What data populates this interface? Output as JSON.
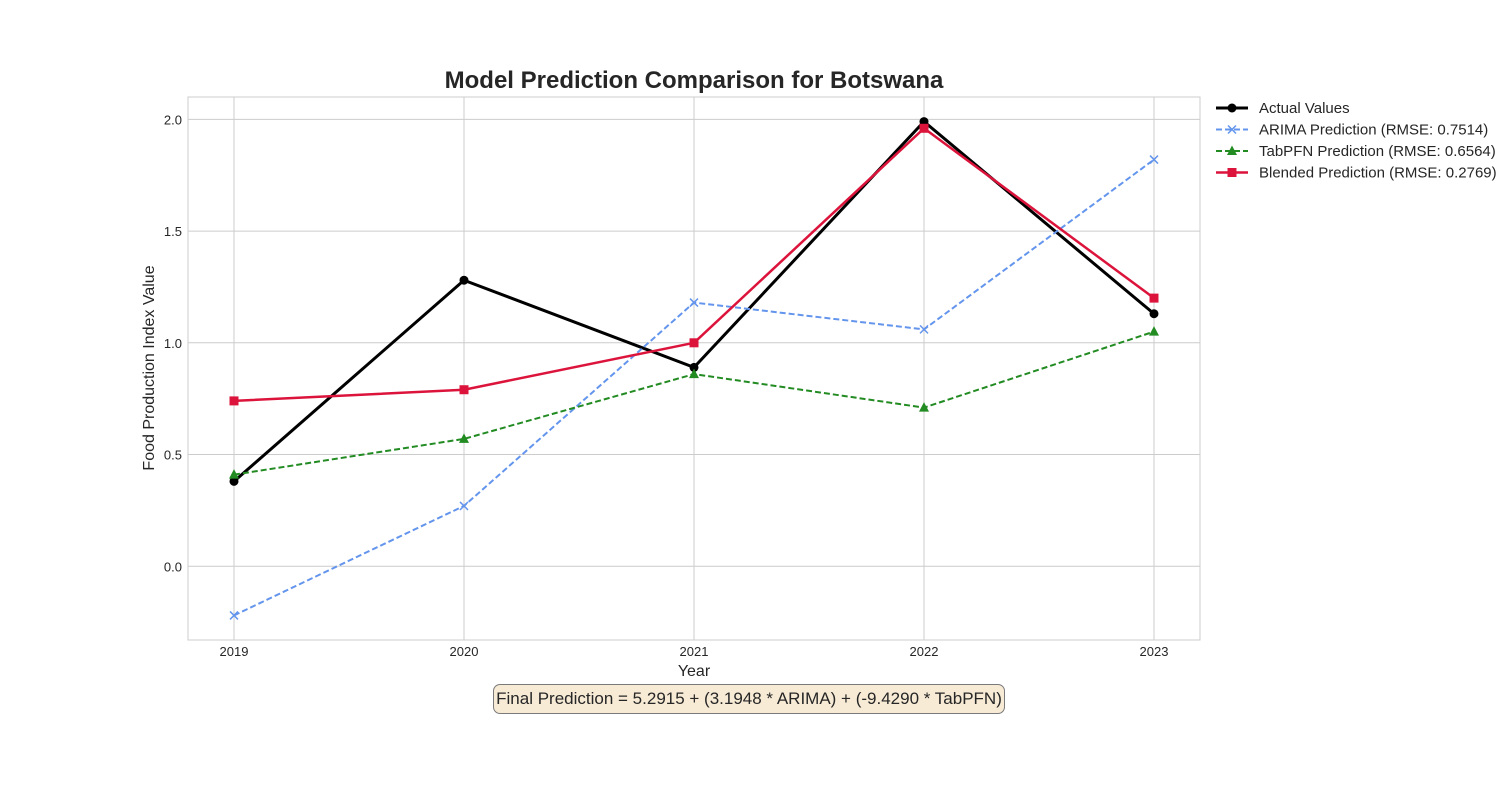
{
  "chart_data": {
    "type": "line",
    "title": "Model Prediction Comparison for Botswana",
    "xlabel": "Year",
    "ylabel": "Food Production Index Value",
    "x": [
      2019,
      2020,
      2021,
      2022,
      2023
    ],
    "xlim": [
      2018.8,
      2023.2
    ],
    "ylim": [
      -0.33,
      2.1
    ],
    "yticks": [
      0.0,
      0.5,
      1.0,
      1.5,
      2.0
    ],
    "ytick_labels": [
      "0.0",
      "0.5",
      "1.0",
      "1.5",
      "2.0"
    ],
    "xtick_labels": [
      "2019",
      "2020",
      "2021",
      "2022",
      "2023"
    ],
    "grid": true,
    "legend_position": "outside-top-right",
    "series": [
      {
        "name": "Actual Values",
        "values": [
          0.38,
          1.28,
          0.89,
          1.99,
          1.13
        ],
        "color": "#000000",
        "dash": "solid",
        "marker": "circle",
        "width": 3
      },
      {
        "name": "ARIMA Prediction (RMSE: 0.7514)",
        "values": [
          -0.22,
          0.27,
          1.18,
          1.06,
          1.82
        ],
        "color": "#6495ed",
        "dash": "dashed",
        "marker": "x",
        "width": 2
      },
      {
        "name": "TabPFN Prediction (RMSE: 0.6564)",
        "values": [
          0.41,
          0.57,
          0.86,
          0.71,
          1.05
        ],
        "color": "#228b22",
        "dash": "dashed",
        "marker": "triangle",
        "width": 2
      },
      {
        "name": "Blended Prediction (RMSE: 0.2769)",
        "values": [
          0.74,
          0.79,
          1.0,
          1.96,
          1.2
        ],
        "color": "#dc143c",
        "dash": "solid",
        "marker": "square",
        "width": 2.5
      }
    ],
    "annotation": "Final Prediction = 5.2915 + (3.1948 * ARIMA) + (-9.4290 * TabPFN)"
  }
}
